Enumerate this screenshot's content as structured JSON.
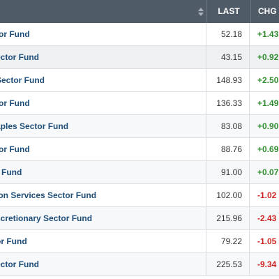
{
  "header": {
    "last_label": "LAST",
    "chg_label": "CHG",
    "sort_icon": "sort-arrows-icon"
  },
  "colors": {
    "header_bg": "#4f5b66",
    "name": "#1f4e79",
    "positive": "#2e8b2e",
    "negative": "#cc2222"
  },
  "rows": [
    {
      "name": "tor Fund",
      "last": "52.18",
      "chg": "+1.43",
      "dir": "pos"
    },
    {
      "name": "ector Fund",
      "last": "43.15",
      "chg": "+0.92",
      "dir": "pos"
    },
    {
      "name": "Sector Fund",
      "last": "148.93",
      "chg": "+2.50",
      "dir": "pos"
    },
    {
      "name": "tor Fund",
      "last": "136.33",
      "chg": "+1.49",
      "dir": "pos"
    },
    {
      "name": "aples Sector Fund",
      "last": "83.08",
      "chg": "+0.90",
      "dir": "pos"
    },
    {
      "name": "tor Fund",
      "last": "88.76",
      "chg": "+0.69",
      "dir": "pos"
    },
    {
      "name": "r Fund",
      "last": "91.00",
      "chg": "+0.07",
      "dir": "pos"
    },
    {
      "name": "ion Services Sector Fund",
      "last": "102.00",
      "chg": "-1.02",
      "dir": "neg"
    },
    {
      "name": "scretionary Sector Fund",
      "last": "215.96",
      "chg": "-2.43",
      "dir": "neg"
    },
    {
      "name": "or Fund",
      "last": "79.22",
      "chg": "-1.05",
      "dir": "neg"
    },
    {
      "name": "ector Fund",
      "last": "225.53",
      "chg": "-9.34",
      "dir": "neg"
    }
  ]
}
